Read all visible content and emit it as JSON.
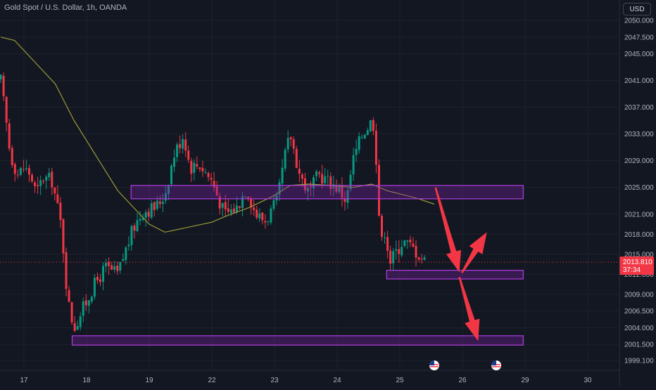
{
  "header": {
    "title": "Gold Spot / U.S. Dollar, 1h, OANDA",
    "currency_button": "USD"
  },
  "price_badge": {
    "price": "2013.810",
    "countdown": "37:34",
    "color": "#f23645"
  },
  "colors": {
    "background": "#131722",
    "bull": "#089981",
    "bear": "#f23645",
    "ma_line": "#9b9b35",
    "zone_stroke": "#b03de0",
    "zone_fill": "#7b1fa2",
    "arrow": "#f23645",
    "event_icon": "#b2b5be"
  },
  "chart_data": {
    "type": "candlestick",
    "title": "Gold Spot / U.S. Dollar, 1h, OANDA",
    "ylim": [
      1998.0,
      2052.0
    ],
    "y_ticks": [
      "2050.000",
      "2047.500",
      "2045.000",
      "2041.000",
      "2037.000",
      "2033.000",
      "2029.000",
      "2025.000",
      "2021.000",
      "2018.000",
      "2015.000",
      "2012.000",
      "2009.000",
      "2006.500",
      "2004.000",
      "2001.500",
      "1999.100"
    ],
    "x_ticks": [
      {
        "label": "17",
        "t": -1.0
      },
      {
        "label": "18",
        "t": 0.0
      },
      {
        "label": "19",
        "t": 1.0
      },
      {
        "label": "22",
        "t": 2.0
      },
      {
        "label": "23",
        "t": 3.0
      },
      {
        "label": "24",
        "t": 4.0
      },
      {
        "label": "25",
        "t": 5.0
      },
      {
        "label": "26",
        "t": 6.0
      },
      {
        "label": "29",
        "t": 7.0
      },
      {
        "label": "30",
        "t": 8.0
      }
    ],
    "candle_anchors": [
      {
        "t": -1.37,
        "p": 2041.0
      },
      {
        "t": -1.3,
        "p": 2036.0
      },
      {
        "t": -1.22,
        "p": 2030.0
      },
      {
        "t": -1.1,
        "p": 2027.0
      },
      {
        "t": -1.0,
        "p": 2028.0
      },
      {
        "t": -0.9,
        "p": 2027.0
      },
      {
        "t": -0.8,
        "p": 2024.0
      },
      {
        "t": -0.7,
        "p": 2026.5
      },
      {
        "t": -0.55,
        "p": 2026.0
      },
      {
        "t": -0.4,
        "p": 2019.0
      },
      {
        "t": -0.3,
        "p": 2008.0
      },
      {
        "t": -0.2,
        "p": 2004.0
      },
      {
        "t": -0.05,
        "p": 2007.0
      },
      {
        "t": 0.1,
        "p": 2010.0
      },
      {
        "t": 0.3,
        "p": 2013.0
      },
      {
        "t": 0.5,
        "p": 2012.0
      },
      {
        "t": 0.6,
        "p": 2015.0
      },
      {
        "t": 0.75,
        "p": 2019.0
      },
      {
        "t": 0.9,
        "p": 2021.5
      },
      {
        "t": 1.1,
        "p": 2022.0
      },
      {
        "t": 1.25,
        "p": 2024.0
      },
      {
        "t": 1.4,
        "p": 2030.0
      },
      {
        "t": 1.55,
        "p": 2033.0
      },
      {
        "t": 1.65,
        "p": 2028.0
      },
      {
        "t": 1.8,
        "p": 2028.5
      },
      {
        "t": 2.0,
        "p": 2026.0
      },
      {
        "t": 2.2,
        "p": 2021.0
      },
      {
        "t": 2.4,
        "p": 2022.0
      },
      {
        "t": 2.55,
        "p": 2025.0
      },
      {
        "t": 2.7,
        "p": 2021.0
      },
      {
        "t": 2.85,
        "p": 2020.0
      },
      {
        "t": 3.05,
        "p": 2023.0
      },
      {
        "t": 3.15,
        "p": 2029.0
      },
      {
        "t": 3.25,
        "p": 2033.0
      },
      {
        "t": 3.4,
        "p": 2027.0
      },
      {
        "t": 3.55,
        "p": 2024.0
      },
      {
        "t": 3.7,
        "p": 2027.0
      },
      {
        "t": 3.85,
        "p": 2026.0
      },
      {
        "t": 4.0,
        "p": 2025.0
      },
      {
        "t": 4.15,
        "p": 2023.0
      },
      {
        "t": 4.25,
        "p": 2029.0
      },
      {
        "t": 4.4,
        "p": 2033.0
      },
      {
        "t": 4.55,
        "p": 2035.0
      },
      {
        "t": 4.6,
        "p": 2034.0
      },
      {
        "t": 4.65,
        "p": 2024.0
      },
      {
        "t": 4.7,
        "p": 2016.0
      },
      {
        "t": 4.75,
        "p": 2019.0
      },
      {
        "t": 4.85,
        "p": 2014.0
      },
      {
        "t": 4.95,
        "p": 2015.5
      },
      {
        "t": 5.05,
        "p": 2017.0
      },
      {
        "t": 5.2,
        "p": 2016.0
      },
      {
        "t": 5.3,
        "p": 2015.0
      },
      {
        "t": 5.4,
        "p": 2014.0
      }
    ],
    "moving_average": [
      {
        "t": -1.37,
        "p": 2047.5
      },
      {
        "t": -1.15,
        "p": 2047.0
      },
      {
        "t": -0.85,
        "p": 2044.0
      },
      {
        "t": -0.5,
        "p": 2040.5
      },
      {
        "t": -0.2,
        "p": 2035.0
      },
      {
        "t": 0.2,
        "p": 2029.0
      },
      {
        "t": 0.5,
        "p": 2024.5
      },
      {
        "t": 0.8,
        "p": 2021.5
      },
      {
        "t": 1.0,
        "p": 2019.5
      },
      {
        "t": 1.25,
        "p": 2018.3
      },
      {
        "t": 1.5,
        "p": 2018.8
      },
      {
        "t": 2.0,
        "p": 2019.8
      },
      {
        "t": 2.25,
        "p": 2020.8
      },
      {
        "t": 2.6,
        "p": 2022.0
      },
      {
        "t": 3.0,
        "p": 2023.8
      },
      {
        "t": 3.25,
        "p": 2025.3
      },
      {
        "t": 3.55,
        "p": 2025.5
      },
      {
        "t": 3.9,
        "p": 2025.3
      },
      {
        "t": 4.25,
        "p": 2025.0
      },
      {
        "t": 4.55,
        "p": 2025.5
      },
      {
        "t": 4.8,
        "p": 2024.5
      },
      {
        "t": 5.1,
        "p": 2023.8
      },
      {
        "t": 5.3,
        "p": 2023.3
      },
      {
        "t": 5.55,
        "p": 2022.5
      }
    ],
    "zones": [
      {
        "t_start": 0.71,
        "t_end": 6.97,
        "p_high": 2025.3,
        "p_low": 2023.3
      },
      {
        "t_start": 4.79,
        "t_end": 6.97,
        "p_high": 2012.6,
        "p_low": 2011.3
      },
      {
        "t_start": -0.23,
        "t_end": 6.97,
        "p_high": 2002.8,
        "p_low": 2001.4
      }
    ],
    "arrows": [
      {
        "from": {
          "t": 5.57,
          "p": 2025.0
        },
        "to": {
          "t": 5.95,
          "p": 2012.3
        },
        "head": "large"
      },
      {
        "from": {
          "t": 5.99,
          "p": 2012.2
        },
        "to": {
          "t": 6.39,
          "p": 2018.3
        },
        "head": "large"
      },
      {
        "from": {
          "t": 5.95,
          "p": 2011.6
        },
        "to": {
          "t": 6.25,
          "p": 2002.0
        },
        "head": "large"
      }
    ],
    "current_price": 2013.81,
    "event_icons": [
      {
        "t": 5.55
      },
      {
        "t": 6.54
      }
    ]
  }
}
